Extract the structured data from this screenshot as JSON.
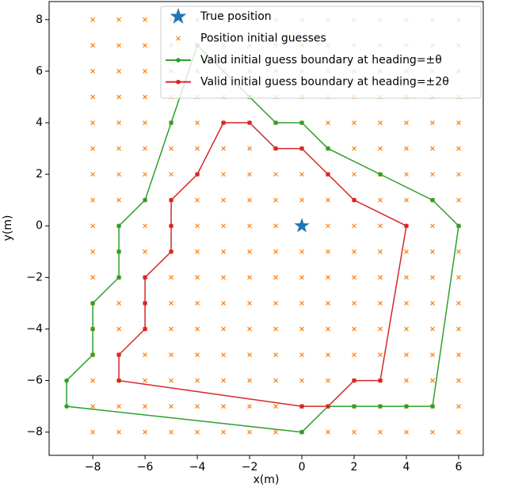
{
  "chart_data": {
    "type": "scatter",
    "xlabel": "x(m)",
    "ylabel": "y(m)",
    "xlim": [
      -9.67,
      6.94
    ],
    "ylim": [
      -8.9,
      8.7
    ],
    "xticks": [
      {
        "value": -8,
        "label": "−8"
      },
      {
        "value": -6,
        "label": "−6"
      },
      {
        "value": -4,
        "label": "−4"
      },
      {
        "value": -2,
        "label": "−2"
      },
      0,
      2,
      4,
      6
    ],
    "yticks": [
      {
        "value": -8,
        "label": "−8"
      },
      {
        "value": -6,
        "label": "−6"
      },
      {
        "value": -4,
        "label": "−4"
      },
      {
        "value": -2,
        "label": "−2"
      },
      0,
      2,
      4,
      6,
      8
    ],
    "legend": "upper right",
    "series": [
      {
        "name": "True position",
        "color": "#1f77b4",
        "marker": "star",
        "x": [
          0
        ],
        "values": [
          0
        ]
      },
      {
        "name": "Position initial guesses",
        "color": "#ff7f0e",
        "marker": "x",
        "x": [
          -8,
          -8,
          -8,
          -8,
          -8,
          -8,
          -8,
          -8,
          -8,
          -8,
          -8,
          -8,
          -8,
          -8,
          -8,
          -8,
          -8,
          -7,
          -7,
          -7,
          -7,
          -7,
          -7,
          -7,
          -7,
          -7,
          -7,
          -7,
          -7,
          -7,
          -7,
          -7,
          -7,
          -7,
          -6,
          -6,
          -6,
          -6,
          -6,
          -6,
          -6,
          -6,
          -6,
          -6,
          -6,
          -6,
          -6,
          -6,
          -6,
          -6,
          -6,
          -5,
          -5,
          -5,
          -5,
          -5,
          -5,
          -5,
          -5,
          -5,
          -5,
          -5,
          -5,
          -5,
          -5,
          -5,
          -5,
          -5,
          -4,
          -4,
          -4,
          -4,
          -4,
          -4,
          -4,
          -4,
          -4,
          -4,
          -4,
          -4,
          -4,
          -4,
          -4,
          -4,
          -4,
          -3,
          -3,
          -3,
          -3,
          -3,
          -3,
          -3,
          -3,
          -3,
          -3,
          -3,
          -3,
          -3,
          -3,
          -3,
          -3,
          -3,
          -2,
          -2,
          -2,
          -2,
          -2,
          -2,
          -2,
          -2,
          -2,
          -2,
          -2,
          -2,
          -2,
          -2,
          -2,
          -2,
          -2,
          -1,
          -1,
          -1,
          -1,
          -1,
          -1,
          -1,
          -1,
          -1,
          -1,
          -1,
          -1,
          -1,
          -1,
          -1,
          -1,
          -1,
          0,
          0,
          0,
          0,
          0,
          0,
          0,
          0,
          0,
          0,
          0,
          0,
          0,
          0,
          0,
          0,
          0,
          1,
          1,
          1,
          1,
          1,
          1,
          1,
          1,
          1,
          1,
          1,
          1,
          1,
          1,
          1,
          1,
          1,
          2,
          2,
          2,
          2,
          2,
          2,
          2,
          2,
          2,
          2,
          2,
          2,
          2,
          2,
          2,
          2,
          2,
          3,
          3,
          3,
          3,
          3,
          3,
          3,
          3,
          3,
          3,
          3,
          3,
          3,
          3,
          3,
          3,
          3,
          4,
          4,
          4,
          4,
          4,
          4,
          4,
          4,
          4,
          4,
          4,
          4,
          4,
          4,
          4,
          4,
          4,
          5,
          5,
          5,
          5,
          5,
          5,
          5,
          5,
          5,
          5,
          5,
          5,
          5,
          5,
          5,
          5,
          5,
          6,
          6,
          6,
          6,
          6,
          6,
          6,
          6,
          6,
          6,
          6,
          6,
          6,
          6,
          6,
          6,
          6
        ],
        "values": [
          -8,
          -7,
          -6,
          -5,
          -4,
          -3,
          -2,
          -1,
          0,
          1,
          2,
          3,
          4,
          5,
          6,
          7,
          8,
          -8,
          -7,
          -6,
          -5,
          -4,
          -3,
          -2,
          -1,
          0,
          1,
          2,
          3,
          4,
          5,
          6,
          7,
          8,
          -8,
          -7,
          -6,
          -5,
          -4,
          -3,
          -2,
          -1,
          0,
          1,
          2,
          3,
          4,
          5,
          6,
          7,
          8,
          -8,
          -7,
          -6,
          -5,
          -4,
          -3,
          -2,
          -1,
          0,
          1,
          2,
          3,
          4,
          5,
          6,
          7,
          8,
          -8,
          -7,
          -6,
          -5,
          -4,
          -3,
          -2,
          -1,
          0,
          1,
          2,
          3,
          4,
          5,
          6,
          7,
          8,
          -8,
          -7,
          -6,
          -5,
          -4,
          -3,
          -2,
          -1,
          0,
          1,
          2,
          3,
          4,
          5,
          6,
          7,
          8,
          -8,
          -7,
          -6,
          -5,
          -4,
          -3,
          -2,
          -1,
          0,
          1,
          2,
          3,
          4,
          5,
          6,
          7,
          8,
          -8,
          -7,
          -6,
          -5,
          -4,
          -3,
          -2,
          -1,
          0,
          1,
          2,
          3,
          4,
          5,
          6,
          7,
          8,
          -8,
          -7,
          -6,
          -5,
          -4,
          -3,
          -2,
          -1,
          0,
          1,
          2,
          3,
          4,
          5,
          6,
          7,
          8,
          -8,
          -7,
          -6,
          -5,
          -4,
          -3,
          -2,
          -1,
          0,
          1,
          2,
          3,
          4,
          5,
          6,
          7,
          8,
          -8,
          -7,
          -6,
          -5,
          -4,
          -3,
          -2,
          -1,
          0,
          1,
          2,
          3,
          4,
          5,
          6,
          7,
          8,
          -8,
          -7,
          -6,
          -5,
          -4,
          -3,
          -2,
          -1,
          0,
          1,
          2,
          3,
          4,
          5,
          6,
          7,
          8,
          -8,
          -7,
          -6,
          -5,
          -4,
          -3,
          -2,
          -1,
          0,
          1,
          2,
          3,
          4,
          5,
          6,
          7,
          8,
          -8,
          -7,
          -6,
          -5,
          -4,
          -3,
          -2,
          -1,
          0,
          1,
          2,
          3,
          4,
          5,
          6,
          7,
          8,
          -8,
          -7,
          -6,
          -5,
          -4,
          -3,
          -2,
          -1,
          0,
          1,
          2,
          3,
          4,
          5,
          6,
          7,
          8
        ]
      },
      {
        "name": "Valid initial guess boundary at heading=±θ",
        "color": "#2ca02c",
        "marker": "o",
        "line": true,
        "x": [
          0,
          -9,
          -9,
          -8,
          -8,
          -8,
          -7,
          -7,
          -7,
          -6,
          -5,
          -4,
          -2,
          -1,
          0,
          1,
          3,
          5,
          6,
          5,
          4,
          3,
          2,
          1,
          0
        ],
        "values": [
          -8,
          -7,
          -6,
          -5,
          -4,
          -3,
          -2,
          -1,
          0,
          1,
          4,
          7,
          5,
          4,
          4,
          3,
          2,
          1,
          0,
          -7,
          -7,
          -7,
          -7,
          -7,
          -8
        ]
      },
      {
        "name": "Valid initial guess boundary at heading=±2θ",
        "color": "#d62728",
        "marker": "o",
        "line": true,
        "x": [
          0,
          -7,
          -7,
          -6,
          -6,
          -6,
          -5,
          -5,
          -5,
          -4,
          -3,
          -2,
          -1,
          0,
          1,
          2,
          4,
          3,
          2,
          1,
          0
        ],
        "values": [
          -7,
          -6,
          -5,
          -4,
          -3,
          -2,
          -1,
          0,
          1,
          2,
          4,
          4,
          3,
          3,
          2,
          1,
          0,
          -6,
          -6,
          -7,
          -7
        ]
      }
    ]
  }
}
